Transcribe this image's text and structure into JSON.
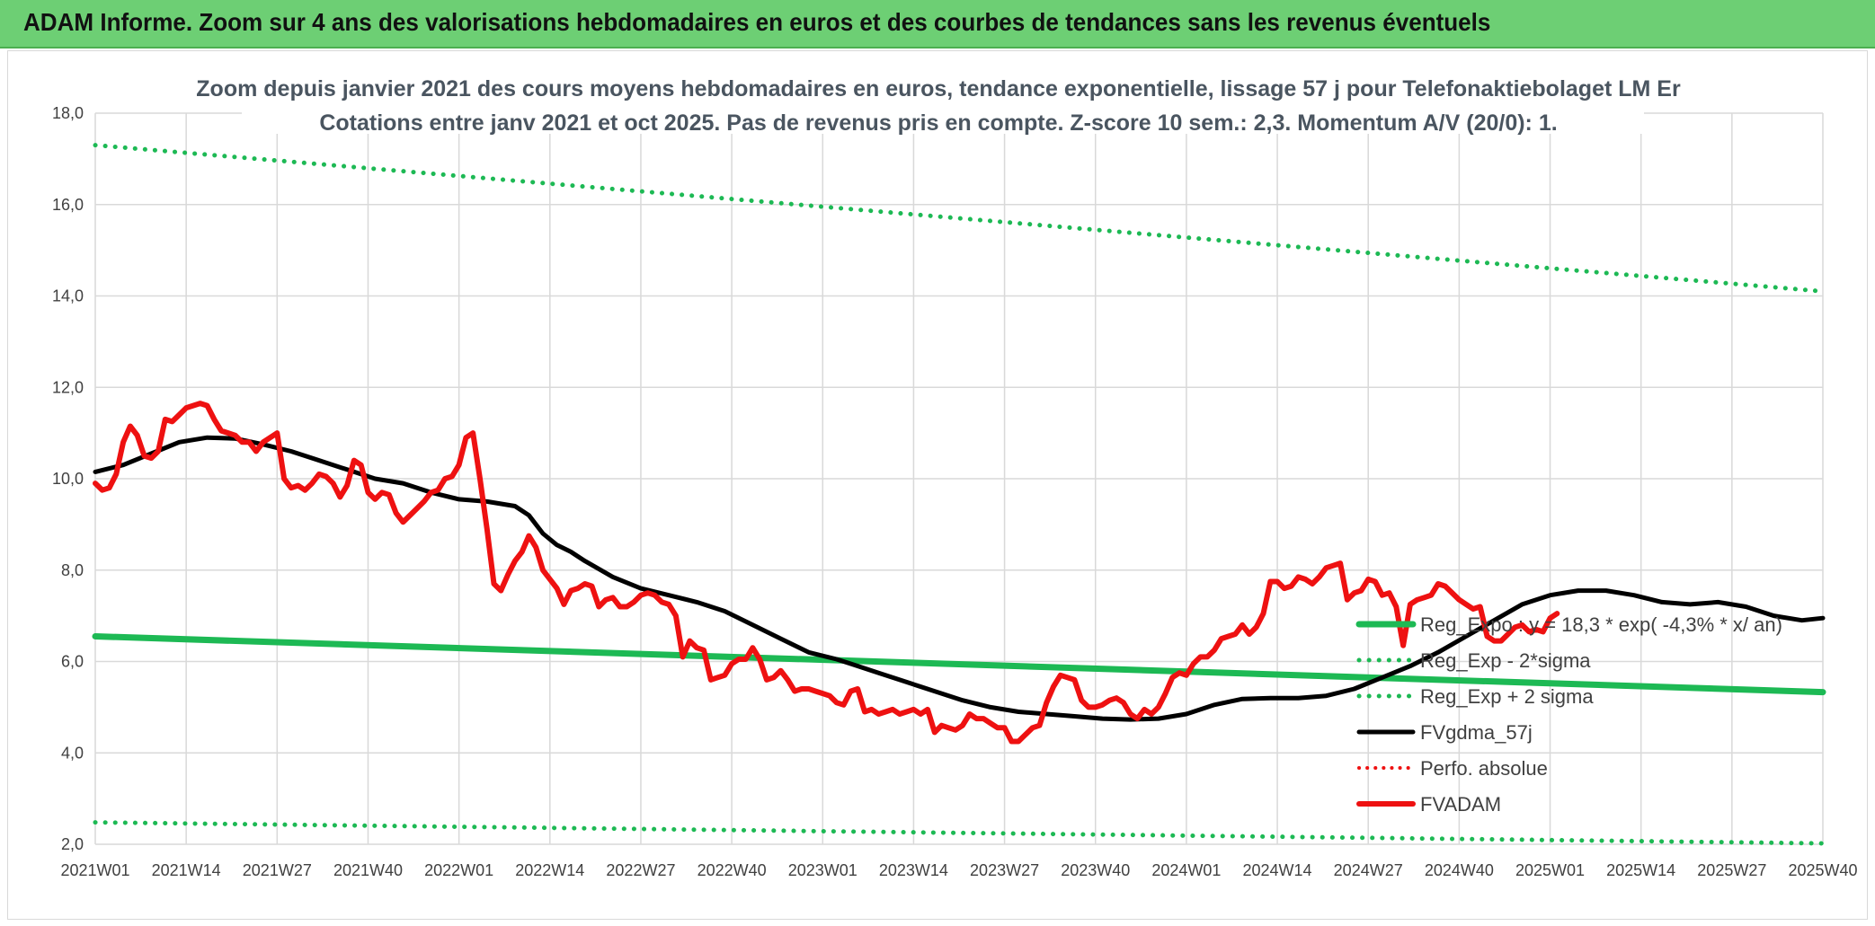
{
  "header": {
    "title": "ADAM Informe. Zoom sur 4 ans des valorisations hebdomadaires en euros et des courbes de tendances sans les revenus éventuels"
  },
  "colors": {
    "header_bg": "#6dcf74",
    "green": "#1db954",
    "red": "#ee1111",
    "black": "#000000",
    "grid": "#d9d9d9"
  },
  "chart_data": {
    "type": "line",
    "title_line1": "Zoom depuis janvier 2021 des cours moyens hebdomadaires en euros, tendance exponentielle, lissage 57 j pour Telefonaktiebolaget LM Er",
    "title_line2": "Cotations entre janv 2021 et oct 2025. Pas de revenus pris en compte. Z-score 10 sem.: 2,3. Momentum A/V (20/0): 1.",
    "ylim": [
      2,
      18
    ],
    "y_ticks": [
      "2,0",
      "4,0",
      "6,0",
      "8,0",
      "10,0",
      "12,0",
      "14,0",
      "16,0",
      "18,0"
    ],
    "x_tick_labels": [
      "2021W01",
      "2021W14",
      "2021W27",
      "2021W40",
      "2022W01",
      "2022W14",
      "2022W27",
      "2022W40",
      "2023W01",
      "2023W14",
      "2023W27",
      "2023W40",
      "2024W01",
      "2024W14",
      "2024W27",
      "2024W40",
      "2025W01",
      "2025W14",
      "2025W27",
      "2025W40"
    ],
    "weeks_total": 248,
    "series": [
      {
        "name": "Reg_Expo : y = 18,3 * exp( -4,3% * x/ an)",
        "style": "solid-green",
        "points": [
          [
            0,
            6.55
          ],
          [
            247,
            5.33
          ]
        ]
      },
      {
        "name": "Reg_Exp - 2*sigma",
        "style": "dotted-green",
        "points": [
          [
            0,
            2.48
          ],
          [
            247,
            2.02
          ]
        ]
      },
      {
        "name": "Reg_Exp + 2 sigma",
        "style": "dotted-green",
        "points": [
          [
            0,
            17.3
          ],
          [
            247,
            14.1
          ]
        ]
      },
      {
        "name": "FVgdma_57j",
        "style": "solid-black",
        "points": [
          [
            0,
            10.15
          ],
          [
            4,
            10.3
          ],
          [
            8,
            10.55
          ],
          [
            12,
            10.8
          ],
          [
            16,
            10.9
          ],
          [
            20,
            10.88
          ],
          [
            24,
            10.75
          ],
          [
            28,
            10.6
          ],
          [
            32,
            10.4
          ],
          [
            36,
            10.2
          ],
          [
            40,
            10.0
          ],
          [
            44,
            9.9
          ],
          [
            48,
            9.7
          ],
          [
            52,
            9.55
          ],
          [
            56,
            9.5
          ],
          [
            60,
            9.4
          ],
          [
            62,
            9.2
          ],
          [
            64,
            8.8
          ],
          [
            66,
            8.55
          ],
          [
            68,
            8.4
          ],
          [
            70,
            8.2
          ],
          [
            74,
            7.85
          ],
          [
            78,
            7.6
          ],
          [
            82,
            7.45
          ],
          [
            86,
            7.3
          ],
          [
            90,
            7.1
          ],
          [
            94,
            6.8
          ],
          [
            98,
            6.5
          ],
          [
            102,
            6.2
          ],
          [
            106,
            6.05
          ],
          [
            108,
            5.95
          ],
          [
            112,
            5.75
          ],
          [
            116,
            5.55
          ],
          [
            120,
            5.35
          ],
          [
            124,
            5.15
          ],
          [
            128,
            5.0
          ],
          [
            132,
            4.9
          ],
          [
            136,
            4.85
          ],
          [
            140,
            4.8
          ],
          [
            144,
            4.75
          ],
          [
            148,
            4.73
          ],
          [
            152,
            4.75
          ],
          [
            156,
            4.85
          ],
          [
            160,
            5.05
          ],
          [
            164,
            5.18
          ],
          [
            168,
            5.2
          ],
          [
            172,
            5.2
          ],
          [
            176,
            5.25
          ],
          [
            180,
            5.4
          ],
          [
            184,
            5.65
          ],
          [
            188,
            5.9
          ],
          [
            192,
            6.2
          ],
          [
            196,
            6.55
          ],
          [
            200,
            6.9
          ],
          [
            204,
            7.25
          ],
          [
            208,
            7.45
          ],
          [
            212,
            7.55
          ],
          [
            216,
            7.55
          ],
          [
            220,
            7.45
          ],
          [
            224,
            7.3
          ],
          [
            228,
            7.25
          ],
          [
            232,
            7.3
          ],
          [
            236,
            7.2
          ],
          [
            240,
            7.0
          ],
          [
            244,
            6.9
          ],
          [
            247,
            6.95
          ]
        ]
      },
      {
        "name": "Perfo. absolue",
        "style": "dotted-red",
        "points": []
      },
      {
        "name": "FVADAM",
        "style": "solid-red-thick",
        "points": [
          [
            0,
            9.9
          ],
          [
            1,
            9.75
          ],
          [
            2,
            9.8
          ],
          [
            3,
            10.1
          ],
          [
            4,
            10.8
          ],
          [
            5,
            11.15
          ],
          [
            6,
            10.95
          ],
          [
            7,
            10.5
          ],
          [
            8,
            10.45
          ],
          [
            9,
            10.6
          ],
          [
            10,
            11.3
          ],
          [
            11,
            11.25
          ],
          [
            12,
            11.4
          ],
          [
            13,
            11.55
          ],
          [
            14,
            11.6
          ],
          [
            15,
            11.65
          ],
          [
            16,
            11.6
          ],
          [
            17,
            11.3
          ],
          [
            18,
            11.05
          ],
          [
            19,
            11.0
          ],
          [
            20,
            10.95
          ],
          [
            21,
            10.8
          ],
          [
            22,
            10.8
          ],
          [
            23,
            10.6
          ],
          [
            24,
            10.8
          ],
          [
            25,
            10.9
          ],
          [
            26,
            11.0
          ],
          [
            27,
            10.0
          ],
          [
            28,
            9.8
          ],
          [
            29,
            9.85
          ],
          [
            30,
            9.75
          ],
          [
            31,
            9.9
          ],
          [
            32,
            10.1
          ],
          [
            33,
            10.05
          ],
          [
            34,
            9.9
          ],
          [
            35,
            9.6
          ],
          [
            36,
            9.85
          ],
          [
            37,
            10.4
          ],
          [
            38,
            10.3
          ],
          [
            39,
            9.7
          ],
          [
            40,
            9.55
          ],
          [
            41,
            9.7
          ],
          [
            42,
            9.65
          ],
          [
            43,
            9.25
          ],
          [
            44,
            9.05
          ],
          [
            45,
            9.2
          ],
          [
            46,
            9.35
          ],
          [
            47,
            9.5
          ],
          [
            48,
            9.7
          ],
          [
            49,
            9.75
          ],
          [
            50,
            10.0
          ],
          [
            51,
            10.05
          ],
          [
            52,
            10.3
          ],
          [
            53,
            10.9
          ],
          [
            54,
            11.0
          ],
          [
            55,
            10.0
          ],
          [
            56,
            8.9
          ],
          [
            57,
            7.7
          ],
          [
            58,
            7.55
          ],
          [
            59,
            7.9
          ],
          [
            60,
            8.2
          ],
          [
            61,
            8.4
          ],
          [
            62,
            8.75
          ],
          [
            63,
            8.5
          ],
          [
            64,
            8.0
          ],
          [
            65,
            7.8
          ],
          [
            66,
            7.6
          ],
          [
            67,
            7.25
          ],
          [
            68,
            7.55
          ],
          [
            69,
            7.6
          ],
          [
            70,
            7.7
          ],
          [
            71,
            7.65
          ],
          [
            72,
            7.2
          ],
          [
            73,
            7.35
          ],
          [
            74,
            7.4
          ],
          [
            75,
            7.2
          ],
          [
            76,
            7.2
          ],
          [
            77,
            7.3
          ],
          [
            78,
            7.45
          ],
          [
            79,
            7.5
          ],
          [
            80,
            7.45
          ],
          [
            81,
            7.3
          ],
          [
            82,
            7.25
          ],
          [
            83,
            7.0
          ],
          [
            84,
            6.1
          ],
          [
            85,
            6.45
          ],
          [
            86,
            6.3
          ],
          [
            87,
            6.25
          ],
          [
            88,
            5.6
          ],
          [
            89,
            5.65
          ],
          [
            90,
            5.7
          ],
          [
            91,
            5.95
          ],
          [
            92,
            6.05
          ],
          [
            93,
            6.05
          ],
          [
            94,
            6.3
          ],
          [
            95,
            6.05
          ],
          [
            96,
            5.6
          ],
          [
            97,
            5.65
          ],
          [
            98,
            5.8
          ],
          [
            99,
            5.6
          ],
          [
            100,
            5.35
          ],
          [
            101,
            5.4
          ],
          [
            102,
            5.4
          ],
          [
            103,
            5.35
          ],
          [
            104,
            5.3
          ],
          [
            105,
            5.25
          ],
          [
            106,
            5.1
          ],
          [
            107,
            5.05
          ],
          [
            108,
            5.35
          ],
          [
            109,
            5.4
          ],
          [
            110,
            4.9
          ],
          [
            111,
            4.95
          ],
          [
            112,
            4.85
          ],
          [
            113,
            4.9
          ],
          [
            114,
            4.95
          ],
          [
            115,
            4.85
          ],
          [
            116,
            4.9
          ],
          [
            117,
            4.95
          ],
          [
            118,
            4.85
          ],
          [
            119,
            4.95
          ],
          [
            120,
            4.45
          ],
          [
            121,
            4.6
          ],
          [
            122,
            4.55
          ],
          [
            123,
            4.5
          ],
          [
            124,
            4.6
          ],
          [
            125,
            4.85
          ],
          [
            126,
            4.75
          ],
          [
            127,
            4.75
          ],
          [
            128,
            4.65
          ],
          [
            129,
            4.55
          ],
          [
            130,
            4.55
          ],
          [
            131,
            4.25
          ],
          [
            132,
            4.25
          ],
          [
            133,
            4.4
          ],
          [
            134,
            4.55
          ],
          [
            135,
            4.6
          ],
          [
            136,
            5.1
          ],
          [
            137,
            5.45
          ],
          [
            138,
            5.7
          ],
          [
            139,
            5.65
          ],
          [
            140,
            5.6
          ],
          [
            141,
            5.15
          ],
          [
            142,
            5.0
          ],
          [
            143,
            5.0
          ],
          [
            144,
            5.05
          ],
          [
            145,
            5.15
          ],
          [
            146,
            5.2
          ],
          [
            147,
            5.1
          ],
          [
            148,
            4.85
          ],
          [
            149,
            4.75
          ],
          [
            150,
            4.95
          ],
          [
            151,
            4.85
          ],
          [
            152,
            5.0
          ],
          [
            153,
            5.3
          ],
          [
            154,
            5.65
          ],
          [
            155,
            5.75
          ],
          [
            156,
            5.7
          ],
          [
            157,
            5.95
          ],
          [
            158,
            6.1
          ],
          [
            159,
            6.1
          ],
          [
            160,
            6.25
          ],
          [
            161,
            6.5
          ],
          [
            162,
            6.55
          ],
          [
            163,
            6.6
          ],
          [
            164,
            6.8
          ],
          [
            165,
            6.6
          ],
          [
            166,
            6.75
          ],
          [
            167,
            7.05
          ],
          [
            168,
            7.75
          ],
          [
            169,
            7.75
          ],
          [
            170,
            7.6
          ],
          [
            171,
            7.65
          ],
          [
            172,
            7.85
          ],
          [
            173,
            7.8
          ],
          [
            174,
            7.7
          ],
          [
            175,
            7.85
          ],
          [
            176,
            8.05
          ],
          [
            177,
            8.1
          ],
          [
            178,
            8.15
          ],
          [
            179,
            7.35
          ],
          [
            180,
            7.5
          ],
          [
            181,
            7.55
          ],
          [
            182,
            7.8
          ],
          [
            183,
            7.75
          ],
          [
            184,
            7.45
          ],
          [
            185,
            7.5
          ],
          [
            186,
            7.2
          ],
          [
            187,
            6.35
          ],
          [
            188,
            7.25
          ],
          [
            189,
            7.35
          ],
          [
            190,
            7.4
          ],
          [
            191,
            7.45
          ],
          [
            192,
            7.7
          ],
          [
            193,
            7.65
          ],
          [
            194,
            7.5
          ],
          [
            195,
            7.35
          ],
          [
            196,
            7.25
          ],
          [
            197,
            7.15
          ],
          [
            198,
            7.2
          ],
          [
            199,
            6.55
          ],
          [
            200,
            6.45
          ],
          [
            201,
            6.45
          ],
          [
            202,
            6.6
          ],
          [
            203,
            6.75
          ],
          [
            204,
            6.8
          ],
          [
            205,
            6.65
          ],
          [
            206,
            6.7
          ],
          [
            207,
            6.65
          ],
          [
            208,
            6.95
          ],
          [
            209,
            7.05
          ]
        ]
      }
    ]
  }
}
